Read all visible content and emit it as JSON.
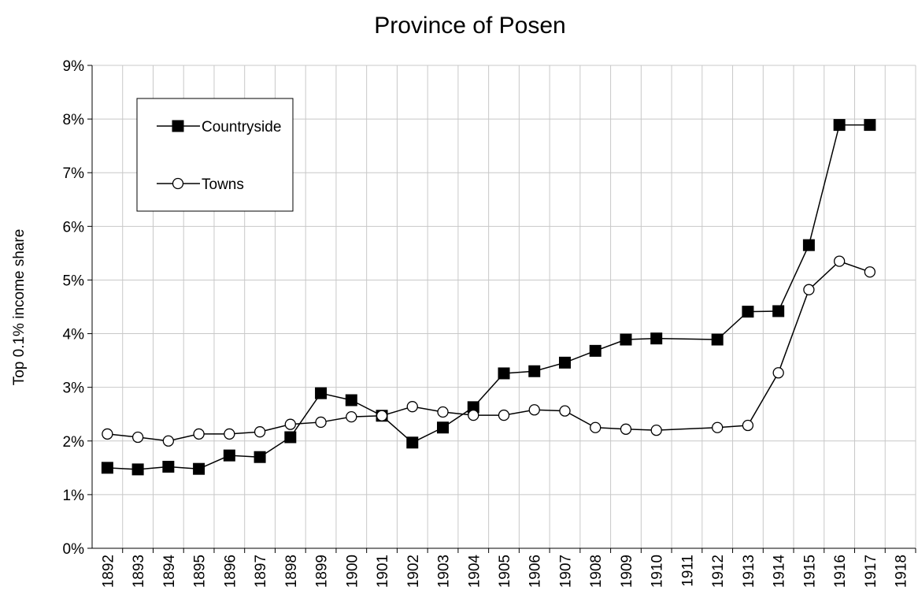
{
  "chart_data": {
    "type": "line",
    "title": "Province of Posen",
    "ylabel": "Top 0.1% income share",
    "x": [
      1892,
      1893,
      1894,
      1895,
      1896,
      1897,
      1898,
      1899,
      1900,
      1901,
      1902,
      1903,
      1904,
      1905,
      1906,
      1907,
      1908,
      1909,
      1910,
      1912,
      1913,
      1914,
      1915,
      1916,
      1917
    ],
    "series": [
      {
        "name": "Countryside",
        "color": "#000000",
        "marker": "square",
        "values": [
          1.5,
          1.47,
          1.52,
          1.48,
          1.73,
          1.7,
          2.07,
          2.89,
          2.76,
          2.47,
          1.97,
          2.25,
          2.63,
          3.26,
          3.3,
          3.46,
          3.68,
          3.89,
          3.91,
          3.89,
          4.41,
          4.42,
          5.65,
          7.89,
          7.89
        ]
      },
      {
        "name": "Towns",
        "color": "#000000",
        "marker": "circle",
        "values": [
          2.13,
          2.07,
          2.0,
          2.13,
          2.13,
          2.17,
          2.31,
          2.35,
          2.45,
          2.47,
          2.64,
          2.54,
          2.48,
          2.48,
          2.58,
          2.56,
          2.25,
          2.22,
          2.2,
          2.25,
          2.29,
          3.27,
          4.82,
          5.35,
          5.15
        ]
      }
    ],
    "xlim": [
      1891.5,
      1918.5
    ],
    "xticks": [
      1892,
      1893,
      1894,
      1895,
      1896,
      1897,
      1898,
      1899,
      1900,
      1901,
      1902,
      1903,
      1904,
      1905,
      1906,
      1907,
      1908,
      1909,
      1910,
      1911,
      1912,
      1913,
      1914,
      1915,
      1916,
      1917,
      1918
    ],
    "ylim": [
      0,
      9
    ],
    "yticks": [
      {
        "value": 0,
        "label": "0%"
      },
      {
        "value": 1,
        "label": "1%"
      },
      {
        "value": 2,
        "label": "2%"
      },
      {
        "value": 3,
        "label": "3%"
      },
      {
        "value": 4,
        "label": "4%"
      },
      {
        "value": 5,
        "label": "5%"
      },
      {
        "value": 6,
        "label": "6%"
      },
      {
        "value": 7,
        "label": "7%"
      },
      {
        "value": 8,
        "label": "8%"
      },
      {
        "value": 9,
        "label": "9%"
      }
    ],
    "grid": true,
    "legend": "upper left"
  }
}
